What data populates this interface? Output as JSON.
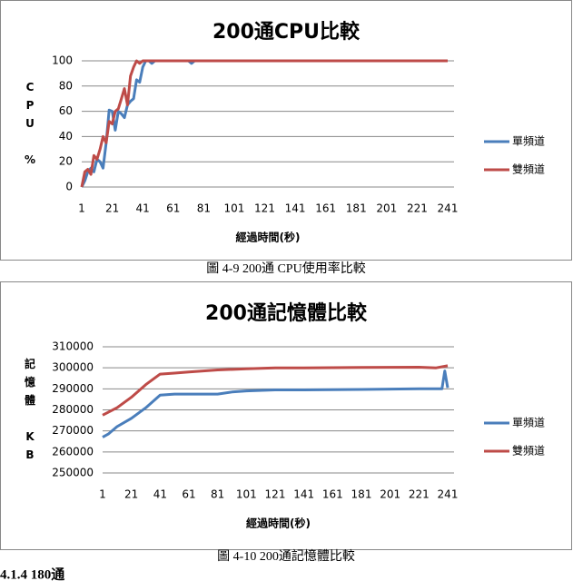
{
  "chart_data": [
    {
      "type": "line",
      "title": "200通CPU比較",
      "xlabel": "經過時間(秒)",
      "ylabel": "CPU %",
      "xlim": [
        1,
        241
      ],
      "xticks": [
        1,
        21,
        41,
        61,
        81,
        101,
        121,
        141,
        161,
        181,
        201,
        221,
        241
      ],
      "ylim": [
        0,
        100
      ],
      "yticks": [
        0,
        20,
        40,
        60,
        80,
        100
      ],
      "grid": true,
      "legend": "right",
      "series": [
        {
          "name": "單頻道",
          "color": "#4a7ebb",
          "x": [
            1,
            3,
            5,
            7,
            9,
            11,
            13,
            15,
            17,
            19,
            21,
            23,
            25,
            27,
            29,
            31,
            33,
            35,
            37,
            39,
            41,
            43,
            45,
            47,
            49,
            51,
            61,
            71,
            73,
            75,
            81,
            101,
            121,
            141,
            161,
            181,
            201,
            221,
            241
          ],
          "values": [
            0,
            5,
            12,
            15,
            12,
            22,
            20,
            15,
            35,
            61,
            60,
            45,
            60,
            58,
            55,
            65,
            68,
            70,
            85,
            83,
            95,
            100,
            100,
            98,
            100,
            100,
            100,
            100,
            98,
            100,
            100,
            100,
            100,
            100,
            100,
            100,
            100,
            100,
            100
          ]
        },
        {
          "name": "雙頻道",
          "color": "#be4b48",
          "x": [
            1,
            3,
            5,
            7,
            9,
            11,
            13,
            15,
            17,
            19,
            21,
            23,
            25,
            27,
            29,
            31,
            33,
            35,
            37,
            39,
            41,
            51,
            81,
            121,
            161,
            201,
            241
          ],
          "values": [
            0,
            12,
            14,
            10,
            25,
            22,
            30,
            40,
            35,
            52,
            50,
            60,
            62,
            70,
            78,
            65,
            88,
            95,
            100,
            98,
            100,
            100,
            100,
            100,
            100,
            100,
            100
          ]
        }
      ]
    },
    {
      "type": "line",
      "title": "200通記憶體比較",
      "xlabel": "經過時間(秒)",
      "ylabel": "記憶體 KB",
      "xlim": [
        1,
        241
      ],
      "xticks": [
        1,
        21,
        41,
        61,
        81,
        101,
        121,
        141,
        161,
        181,
        201,
        221,
        241
      ],
      "ylim": [
        250000,
        310000
      ],
      "yticks": [
        250000,
        260000,
        270000,
        280000,
        290000,
        300000,
        310000
      ],
      "grid": true,
      "legend": "right",
      "series": [
        {
          "name": "單頻道",
          "color": "#4a7ebb",
          "x": [
            1,
            5,
            11,
            21,
            31,
            41,
            51,
            81,
            91,
            101,
            121,
            141,
            181,
            221,
            237,
            239,
            241
          ],
          "values": [
            267000,
            268500,
            272000,
            276000,
            281000,
            287000,
            287500,
            287500,
            288500,
            289000,
            289500,
            289500,
            289700,
            290000,
            290000,
            298500,
            290500
          ]
        },
        {
          "name": "雙頻道",
          "color": "#be4b48",
          "x": [
            1,
            11,
            21,
            31,
            41,
            51,
            61,
            81,
            101,
            121,
            141,
            181,
            221,
            233,
            241
          ],
          "values": [
            277500,
            281000,
            286000,
            292000,
            297000,
            297500,
            298000,
            299000,
            299500,
            300000,
            300000,
            300200,
            300300,
            300000,
            301000
          ]
        }
      ]
    }
  ],
  "captions": [
    "圖 4-9 200通 CPU使用率比較",
    "圖 4-10 200通記憶體比較"
  ],
  "heading": "4.1.4 180通"
}
